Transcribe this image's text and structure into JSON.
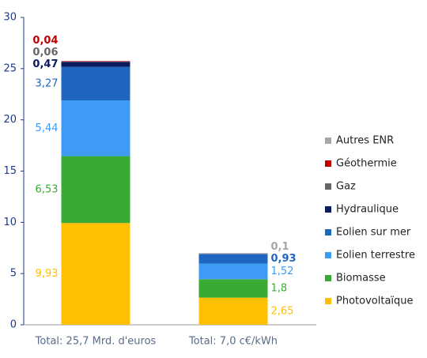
{
  "chart_data": {
    "type": "stacked_bar",
    "categories": [
      "Total: 25,7 Mrd. d'euros",
      "Total: 7,0 c€/kWh"
    ],
    "ylim": [
      0,
      30
    ],
    "yticks": [
      0,
      5,
      10,
      15,
      20,
      25,
      30
    ],
    "grid": false,
    "legend": "right",
    "series": [
      {
        "name": "Photovoltaïque",
        "color": "#ffc000",
        "values": [
          9.93,
          2.65
        ],
        "value_labels": [
          "9,93",
          "2,65"
        ]
      },
      {
        "name": "Biomasse",
        "color": "#3aaa35",
        "values": [
          6.53,
          1.8
        ],
        "value_labels": [
          "6,53",
          "1,8"
        ]
      },
      {
        "name": "Eolien terrestre",
        "color": "#3d9bf5",
        "values": [
          5.44,
          1.52
        ],
        "value_labels": [
          "5,44",
          "1,52"
        ]
      },
      {
        "name": "Eolien sur mer",
        "color": "#1f66c1",
        "values": [
          3.27,
          0.93
        ],
        "value_labels": [
          "3,27",
          "0,93"
        ]
      },
      {
        "name": "Hydraulique",
        "color": "#0d1a5c",
        "values": [
          0.47,
          null
        ],
        "value_labels": [
          "0,47",
          null
        ]
      },
      {
        "name": "Gaz",
        "color": "#666666",
        "values": [
          0.06,
          null
        ],
        "value_labels": [
          "0,06",
          null
        ]
      },
      {
        "name": "Géothermie",
        "color": "#c00000",
        "values": [
          0.04,
          null
        ],
        "value_labels": [
          "0,04",
          null
        ]
      },
      {
        "name": "Autres ENR",
        "color": "#a6a6a6",
        "values": [
          null,
          0.1
        ],
        "value_labels": [
          null,
          "0,1"
        ]
      }
    ]
  }
}
